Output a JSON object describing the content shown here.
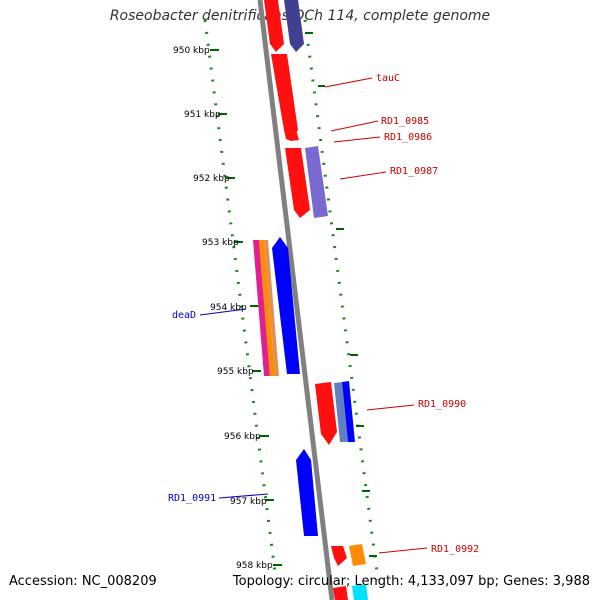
{
  "title": "Roseobacter denitrificans OCh 114, complete genome",
  "footer": {
    "accession": "Accession: NC_008209",
    "topology": "Topology: circular; Length: 4,133,097 bp; Genes: 3,988"
  },
  "ticks": [
    "950 kbp",
    "951 kbp",
    "952 kbp",
    "953 kbp",
    "954 kbp",
    "955 kbp",
    "956 kbp",
    "957 kbp",
    "958 kbp"
  ],
  "genes_right": [
    "tauC",
    "RD1_0985",
    "RD1_0986",
    "RD1_0987",
    "RD1_0990",
    "RD1_0992"
  ],
  "genes_left": [
    "deaD",
    "RD1_0991"
  ],
  "colors": {
    "backbone": "#808080",
    "red": "#ff0000",
    "blue": "#0000ff",
    "purple": "#7060c8",
    "dark_purple": "#403080",
    "green_ticks": "#006400",
    "orange": "#ff8c00",
    "magenta": "#e0208c",
    "cyan": "#00e0ff",
    "label_red": "#cc0000",
    "label_blue": "#0000cc"
  }
}
